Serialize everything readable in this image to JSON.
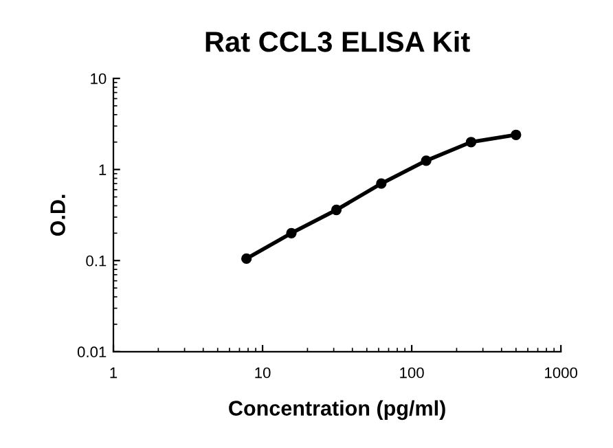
{
  "chart_data": {
    "type": "line",
    "title": "Rat CCL3 ELISA Kit",
    "xlabel": "Concentration (pg/ml)",
    "ylabel": "O.D.",
    "x": [
      7.8,
      15.6,
      31.25,
      62.5,
      125,
      250,
      500
    ],
    "series": [
      {
        "color": "#000000",
        "values": [
          0.105,
          0.2,
          0.36,
          0.7,
          1.25,
          2.0,
          2.4
        ]
      }
    ],
    "log": "xy",
    "xlim": [
      1,
      1000
    ],
    "ylim": [
      0.01,
      10
    ],
    "xticks": [
      1,
      10,
      100,
      1000
    ],
    "yticks": [
      0.01,
      0.1,
      1,
      10
    ],
    "marker": "circle",
    "line_style": "solid",
    "grid": false,
    "legend": false
  }
}
